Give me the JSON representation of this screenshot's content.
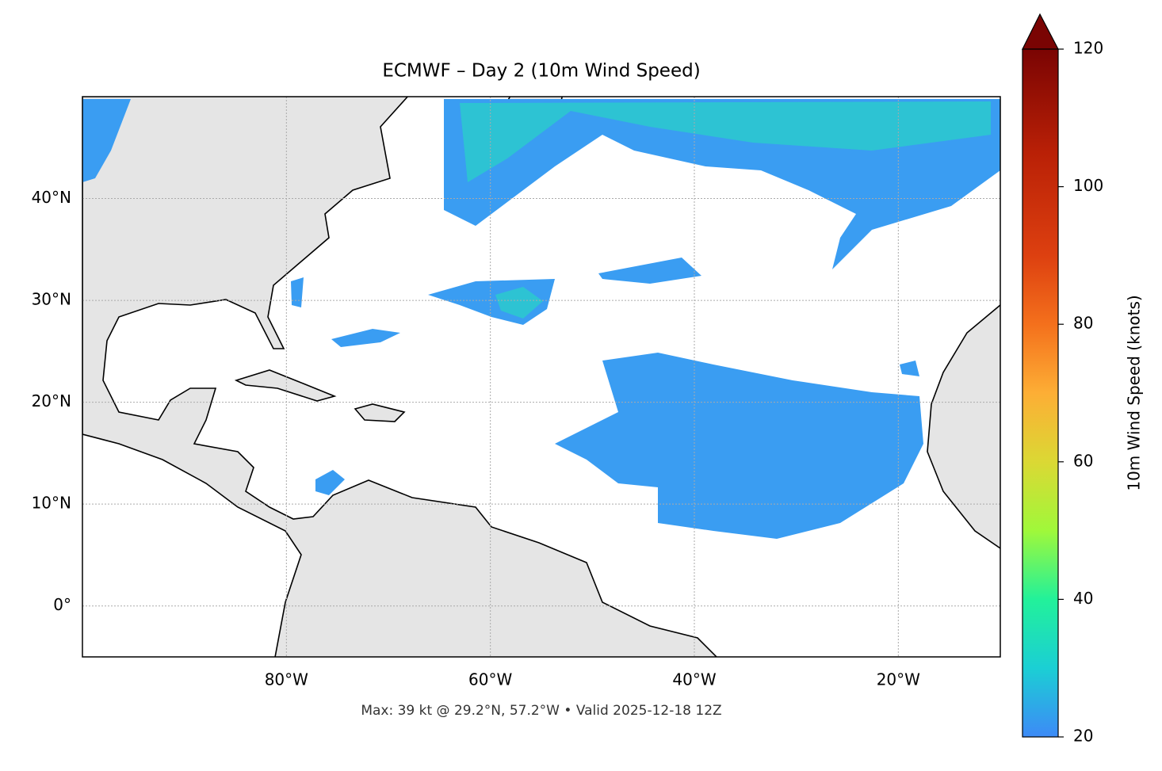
{
  "map": {
    "title": "ECMWF – Day 2 (10m Wind Speed)",
    "footer": "Max: 39 kt @ 29.2°N, 57.2°W • Valid 2025-12-18 12Z",
    "xlim": [
      -100,
      -10
    ],
    "ylim": [
      -5,
      50
    ],
    "xticks": [
      {
        "value": -80,
        "label": "80°W"
      },
      {
        "value": -60,
        "label": "60°W"
      },
      {
        "value": -40,
        "label": "40°W"
      },
      {
        "value": -20,
        "label": "20°W"
      }
    ],
    "yticks": [
      {
        "value": 0,
        "label": "0°"
      },
      {
        "value": 10,
        "label": "10°N"
      },
      {
        "value": 20,
        "label": "20°N"
      },
      {
        "value": 30,
        "label": "30°N"
      },
      {
        "value": 40,
        "label": "40°N"
      }
    ],
    "grid": true,
    "colorbar": {
      "label": "10m Wind Speed (knots)",
      "lim": [
        20,
        120
      ],
      "ticks": [
        20,
        40,
        60,
        80,
        100,
        120
      ]
    }
  }
}
